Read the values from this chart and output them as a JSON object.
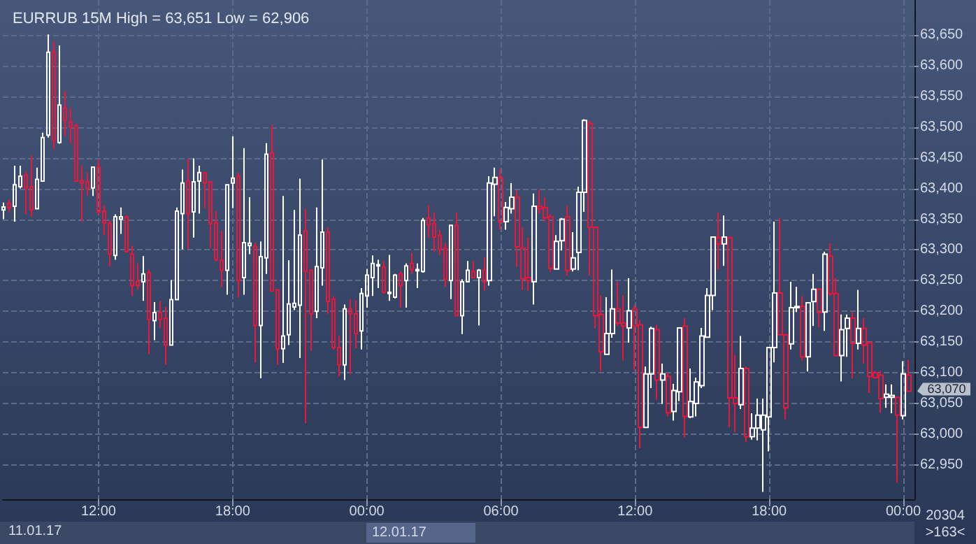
{
  "chart_data": {
    "type": "candlestick",
    "title": "EURRUB 15M High = 63,651 Low = 62,906",
    "x": [
      "--01-11T07:45",
      "--01-11T08:00",
      "--01-11T08:15",
      "--01-11T08:30",
      "--01-11T08:45",
      "--01-11T09:00",
      "--01-11T09:15",
      "--01-11T09:30",
      "--01-11T09:45",
      "--01-11T10:00",
      "--01-11T10:15",
      "--01-11T10:30",
      "--01-11T10:45",
      "--01-11T11:00",
      "--01-11T11:15",
      "--01-11T11:30",
      "--01-11T11:45",
      "--01-11T12:00",
      "--01-11T12:15",
      "--01-11T12:30",
      "--01-11T12:45",
      "--01-11T13:00",
      "--01-11T13:15",
      "--01-11T13:30",
      "--01-11T13:45",
      "--01-11T14:00",
      "--01-11T14:15",
      "--01-11T14:30",
      "--01-11T14:45",
      "--01-11T15:00",
      "--01-11T15:15",
      "--01-11T15:30",
      "--01-11T15:45",
      "--01-11T16:00",
      "--01-11T16:15",
      "--01-11T16:30",
      "--01-11T16:45",
      "--01-11T17:00",
      "--01-11T17:15",
      "--01-11T17:30",
      "--01-11T17:45",
      "--01-11T18:00",
      "--01-11T18:15",
      "--01-11T18:30",
      "--01-11T18:45",
      "--01-11T19:00",
      "--01-11T19:15",
      "--01-11T19:30",
      "--01-11T19:45",
      "--01-11T20:00",
      "--01-11T20:15",
      "--01-11T20:30",
      "--01-11T20:45",
      "--01-11T21:00",
      "--01-11T21:15",
      "--01-11T21:30",
      "--01-11T21:45",
      "--01-11T22:00",
      "--01-11T22:15",
      "--01-11T22:30",
      "--01-11T22:45",
      "--01-11T23:00",
      "--01-11T23:15",
      "--01-11T23:30",
      "--01-11T23:45",
      "--01-12T00:00",
      "--01-12T00:15",
      "--01-12T00:30",
      "--01-12T00:45",
      "--01-12T01:00",
      "--01-12T01:15",
      "--01-12T01:30",
      "--01-12T01:45",
      "--01-12T02:00",
      "--01-12T02:15",
      "--01-12T02:30",
      "--01-12T02:45",
      "--01-12T03:00",
      "--01-12T03:15",
      "--01-12T03:30",
      "--01-12T03:45",
      "--01-12T04:00",
      "--01-12T04:15",
      "--01-12T04:30",
      "--01-12T04:45",
      "--01-12T05:00",
      "--01-12T05:15",
      "--01-12T05:30",
      "--01-12T05:45",
      "--01-12T06:00",
      "--01-12T06:15",
      "--01-12T06:30",
      "--01-12T06:45",
      "--01-12T07:00",
      "--01-12T07:15",
      "--01-12T07:30",
      "--01-12T07:45",
      "--01-12T08:00",
      "--01-12T08:15",
      "--01-12T08:30",
      "--01-12T08:45",
      "--01-12T09:00",
      "--01-12T09:15",
      "--01-12T09:30",
      "--01-12T09:45",
      "--01-12T10:00",
      "--01-12T10:15",
      "--01-12T10:30",
      "--01-12T10:45",
      "--01-12T11:00",
      "--01-12T11:15",
      "--01-12T11:30",
      "--01-12T11:45",
      "--01-12T12:00",
      "--01-12T12:15",
      "--01-12T12:30",
      "--01-12T12:45",
      "--01-12T13:00",
      "--01-12T13:15",
      "--01-12T13:30",
      "--01-12T13:45",
      "--01-12T14:00",
      "--01-12T14:15",
      "--01-12T14:30",
      "--01-12T14:45",
      "--01-12T15:00",
      "--01-12T15:15",
      "--01-12T15:30",
      "--01-12T15:45",
      "--01-12T16:00",
      "--01-12T16:15",
      "--01-12T16:30",
      "--01-12T16:45",
      "--01-12T17:00",
      "--01-12T17:15",
      "--01-12T17:30",
      "--01-12T17:45",
      "--01-12T18:00",
      "--01-12T18:15",
      "--01-12T18:30",
      "--01-12T18:45",
      "--01-12T19:00",
      "--01-12T19:15",
      "--01-12T19:30",
      "--01-12T19:45",
      "--01-12T20:00",
      "--01-12T20:15",
      "--01-12T20:30",
      "--01-12T20:45",
      "--01-12T21:00",
      "--01-12T21:15",
      "--01-12T21:30",
      "--01-12T21:45",
      "--01-12T22:00",
      "--01-12T22:15",
      "--01-12T22:30",
      "--01-12T22:45",
      "--01-12T23:00",
      "--01-12T23:15",
      "--01-12T23:30",
      "--01-12T23:45",
      "--01-13T00:00",
      "--01-13T00:15"
    ],
    "ohlc": [
      [
        63365,
        63377,
        63350,
        63370
      ],
      [
        63376,
        63382,
        63362,
        63369
      ],
      [
        63371,
        63437,
        63346,
        63406
      ],
      [
        63403,
        63437,
        63400,
        63420
      ],
      [
        63422,
        63428,
        63358,
        63401
      ],
      [
        63403,
        63454,
        63354,
        63365
      ],
      [
        63367,
        63434,
        63367,
        63415
      ],
      [
        63412,
        63491,
        63411,
        63483
      ],
      [
        63487,
        63651,
        63483,
        63622
      ],
      [
        63622,
        63639,
        63464,
        63479
      ],
      [
        63475,
        63633,
        63473,
        63536
      ],
      [
        63531,
        63559,
        63485,
        63511
      ],
      [
        63508,
        63531,
        63473,
        63500
      ],
      [
        63502,
        63506,
        63412,
        63412
      ],
      [
        63413,
        63437,
        63346,
        63409
      ],
      [
        63411,
        63426,
        63388,
        63400
      ],
      [
        63401,
        63435,
        63388,
        63435
      ],
      [
        63435,
        63447,
        63358,
        63362
      ],
      [
        63363,
        63373,
        63324,
        63344
      ],
      [
        63343,
        63348,
        63273,
        63293
      ],
      [
        63291,
        63358,
        63284,
        63354
      ],
      [
        63350,
        63369,
        63326,
        63354
      ],
      [
        63354,
        63356,
        63296,
        63297
      ],
      [
        63293,
        63307,
        63225,
        63242
      ],
      [
        63249,
        63278,
        63236,
        63242
      ],
      [
        63248,
        63290,
        63217,
        63261
      ],
      [
        63263,
        63268,
        63130,
        63187
      ],
      [
        63185,
        63215,
        63153,
        63198
      ],
      [
        63198,
        63217,
        63173,
        63187
      ],
      [
        63189,
        63207,
        63113,
        63145
      ],
      [
        63145,
        63251,
        63145,
        63219
      ],
      [
        63219,
        63369,
        63219,
        63363
      ],
      [
        63359,
        63431,
        63301,
        63409
      ],
      [
        63412,
        63449,
        63302,
        63359
      ],
      [
        63362,
        63449,
        63320,
        63411
      ],
      [
        63412,
        63437,
        63359,
        63426
      ],
      [
        63426,
        63426,
        63368,
        63409
      ],
      [
        63411,
        63411,
        63303,
        63343
      ],
      [
        63344,
        63363,
        63282,
        63284
      ],
      [
        63283,
        63331,
        63240,
        63267
      ],
      [
        63267,
        63406,
        63227,
        63406
      ],
      [
        63409,
        63485,
        63368,
        63417
      ],
      [
        63420,
        63426,
        63223,
        63250
      ],
      [
        63255,
        63466,
        63227,
        63312
      ],
      [
        63307,
        63386,
        63293,
        63311
      ],
      [
        63306,
        63312,
        63117,
        63177
      ],
      [
        63177,
        63314,
        63091,
        63289
      ],
      [
        63287,
        63474,
        63261,
        63456
      ],
      [
        63458,
        63504,
        63233,
        63233
      ],
      [
        63235,
        63235,
        63113,
        63139
      ],
      [
        63139,
        63388,
        63116,
        63160
      ],
      [
        63162,
        63283,
        63145,
        63212
      ],
      [
        63207,
        63365,
        63202,
        63213
      ],
      [
        63210,
        63416,
        63124,
        63324
      ],
      [
        63331,
        63367,
        63018,
        63265
      ],
      [
        63267,
        63267,
        63136,
        63196
      ],
      [
        63200,
        63369,
        63189,
        63273
      ],
      [
        63271,
        63447,
        63242,
        63329
      ],
      [
        63329,
        63337,
        63196,
        63216
      ],
      [
        63220,
        63225,
        63138,
        63141
      ],
      [
        63141,
        63160,
        63094,
        63113
      ],
      [
        63113,
        63211,
        63088,
        63204
      ],
      [
        63204,
        63220,
        63098,
        63196
      ],
      [
        63196,
        63218,
        63140,
        63164
      ],
      [
        63168,
        63238,
        63138,
        63229
      ],
      [
        63225,
        63269,
        63206,
        63259
      ],
      [
        63255,
        63291,
        63225,
        63278
      ],
      [
        63274,
        63284,
        63238,
        63276
      ],
      [
        63272,
        63282,
        63229,
        63231
      ],
      [
        63229,
        63292,
        63217,
        63231
      ],
      [
        63223,
        63261,
        63221,
        63259
      ],
      [
        63261,
        63265,
        63206,
        63242
      ],
      [
        63250,
        63278,
        63206,
        63274
      ],
      [
        63278,
        63295,
        63261,
        63268
      ],
      [
        63266,
        63278,
        63238,
        63268
      ],
      [
        63265,
        63352,
        63263,
        63348
      ],
      [
        63352,
        63373,
        63320,
        63341
      ],
      [
        63343,
        63361,
        63297,
        63321
      ],
      [
        63324,
        63333,
        63291,
        63301
      ],
      [
        63303,
        63312,
        63240,
        63252
      ],
      [
        63250,
        63340,
        63220,
        63340
      ],
      [
        63340,
        63361,
        63193,
        63193
      ],
      [
        63193,
        63252,
        63163,
        63248
      ],
      [
        63248,
        63282,
        63248,
        63267
      ],
      [
        63265,
        63282,
        63255,
        63255
      ],
      [
        63255,
        63269,
        63177,
        63267
      ],
      [
        63267,
        63288,
        63234,
        63248
      ],
      [
        63250,
        63420,
        63242,
        63409
      ],
      [
        63407,
        63434,
        63355,
        63418
      ],
      [
        63417,
        63432,
        63333,
        63346
      ],
      [
        63346,
        63378,
        63333,
        63369
      ],
      [
        63367,
        63409,
        63359,
        63386
      ],
      [
        63386,
        63397,
        63273,
        63305
      ],
      [
        63303,
        63337,
        63235,
        63253
      ],
      [
        63255,
        63320,
        63233,
        63250
      ],
      [
        63248,
        63392,
        63211,
        63371
      ],
      [
        63371,
        63398,
        63359,
        63367
      ],
      [
        63369,
        63386,
        63346,
        63352
      ],
      [
        63354,
        63358,
        63264,
        63270
      ],
      [
        63269,
        63324,
        63269,
        63314
      ],
      [
        63315,
        63352,
        63299,
        63350
      ],
      [
        63354,
        63372,
        63258,
        63267
      ],
      [
        63269,
        63329,
        63265,
        63287
      ],
      [
        63296,
        63403,
        63267,
        63394
      ],
      [
        63394,
        63513,
        63362,
        63511
      ],
      [
        63506,
        63511,
        63258,
        63337
      ],
      [
        63337,
        63337,
        63172,
        63193
      ],
      [
        63195,
        63226,
        63102,
        63134
      ],
      [
        63130,
        63223,
        63130,
        63164
      ],
      [
        63164,
        63268,
        63157,
        63204
      ],
      [
        63204,
        63248,
        63176,
        63181
      ],
      [
        63181,
        63226,
        63120,
        63176
      ],
      [
        63173,
        63254,
        63149,
        63201
      ],
      [
        63204,
        63210,
        63104,
        63176
      ],
      [
        63178,
        63186,
        62977,
        63011
      ],
      [
        63011,
        63110,
        63011,
        63098
      ],
      [
        63098,
        63175,
        63075,
        63172
      ],
      [
        63170,
        63178,
        63056,
        63088
      ],
      [
        63088,
        63115,
        63049,
        63098
      ],
      [
        63094,
        63100,
        63029,
        63035
      ],
      [
        63037,
        63082,
        63022,
        63071
      ],
      [
        63069,
        63173,
        63054,
        63173
      ],
      [
        63176,
        63189,
        62995,
        63029
      ],
      [
        63028,
        63107,
        63026,
        63053
      ],
      [
        63050,
        63092,
        63029,
        63085
      ],
      [
        63079,
        63173,
        63075,
        63160
      ],
      [
        63158,
        63238,
        63157,
        63226
      ],
      [
        63226,
        63321,
        63202,
        63321
      ],
      [
        63320,
        63361,
        63268,
        63310
      ],
      [
        63310,
        63356,
        63274,
        63321
      ],
      [
        63320,
        63320,
        63011,
        63059
      ],
      [
        63059,
        63129,
        63003,
        63050
      ],
      [
        63048,
        63160,
        63041,
        63107
      ],
      [
        63107,
        63110,
        62987,
        62996
      ],
      [
        62996,
        63034,
        62991,
        63010
      ],
      [
        63010,
        63058,
        62990,
        63031
      ],
      [
        63007,
        63058,
        62906,
        63031
      ],
      [
        63028,
        63142,
        62972,
        63141
      ],
      [
        63141,
        63346,
        63117,
        63230
      ],
      [
        63230,
        63352,
        63162,
        63162
      ],
      [
        63162,
        63162,
        63024,
        63043
      ],
      [
        63147,
        63248,
        63138,
        63206
      ],
      [
        63206,
        63240,
        63199,
        63208
      ],
      [
        63208,
        63225,
        63120,
        63126
      ],
      [
        63126,
        63214,
        63102,
        63214
      ],
      [
        63216,
        63261,
        63176,
        63236
      ],
      [
        63236,
        63238,
        63174,
        63198
      ],
      [
        63199,
        63297,
        63168,
        63293
      ],
      [
        63290,
        63311,
        63225,
        63229
      ],
      [
        63229,
        63254,
        63127,
        63128
      ],
      [
        63128,
        63195,
        63086,
        63170
      ],
      [
        63172,
        63195,
        63126,
        63189
      ],
      [
        63189,
        63199,
        63091,
        63148
      ],
      [
        63148,
        63235,
        63138,
        63172
      ],
      [
        63172,
        63189,
        63115,
        63145
      ],
      [
        63149,
        63149,
        63067,
        63094
      ],
      [
        63100,
        63103,
        63090,
        63092
      ],
      [
        63096,
        63103,
        63035,
        63058
      ],
      [
        63060,
        63081,
        63043,
        63065
      ],
      [
        63060,
        63081,
        63034,
        63063
      ],
      [
        63060,
        63060,
        62921,
        63031
      ],
      [
        63030,
        63119,
        63024,
        63098
      ],
      [
        63096,
        63121,
        63069,
        63070
      ]
    ],
    "colors": [
      "#ffffff",
      "#e8173c",
      "#ffffff",
      "#ffffff",
      "#e8173c",
      "#e8173c",
      "#ffffff",
      "#ffffff",
      "#ffffff",
      "#e8173c",
      "#ffffff",
      "#e8173c",
      "#e8173c",
      "#e8173c",
      "#e8173c",
      "#e8173c",
      "#ffffff",
      "#e8173c",
      "#e8173c",
      "#e8173c",
      "#ffffff",
      "#ffffff",
      "#e8173c",
      "#e8173c",
      "#e8173c",
      "#ffffff",
      "#e8173c",
      "#ffffff",
      "#e8173c",
      "#e8173c",
      "#ffffff",
      "#ffffff",
      "#ffffff",
      "#e8173c",
      "#ffffff",
      "#ffffff",
      "#e8173c",
      "#e8173c",
      "#e8173c",
      "#e8173c",
      "#ffffff",
      "#ffffff",
      "#e8173c",
      "#ffffff",
      "#ffffff",
      "#e8173c",
      "#ffffff",
      "#ffffff",
      "#e8173c",
      "#e8173c",
      "#ffffff",
      "#ffffff",
      "#ffffff",
      "#ffffff",
      "#e8173c",
      "#e8173c",
      "#ffffff",
      "#ffffff",
      "#e8173c",
      "#e8173c",
      "#e8173c",
      "#ffffff",
      "#e8173c",
      "#e8173c",
      "#ffffff",
      "#ffffff",
      "#ffffff",
      "#ffffff",
      "#e8173c",
      "#ffffff",
      "#ffffff",
      "#e8173c",
      "#ffffff",
      "#e8173c",
      "#ffffff",
      "#ffffff",
      "#e8173c",
      "#e8173c",
      "#e8173c",
      "#e8173c",
      "#ffffff",
      "#e8173c",
      "#ffffff",
      "#ffffff",
      "#e8173c",
      "#ffffff",
      "#e8173c",
      "#ffffff",
      "#ffffff",
      "#e8173c",
      "#ffffff",
      "#ffffff",
      "#e8173c",
      "#e8173c",
      "#e8173c",
      "#ffffff",
      "#e8173c",
      "#e8173c",
      "#e8173c",
      "#ffffff",
      "#ffffff",
      "#e8173c",
      "#ffffff",
      "#ffffff",
      "#ffffff",
      "#e8173c",
      "#e8173c",
      "#e8173c",
      "#ffffff",
      "#ffffff",
      "#e8173c",
      "#e8173c",
      "#ffffff",
      "#e8173c",
      "#e8173c",
      "#ffffff",
      "#ffffff",
      "#e8173c",
      "#ffffff",
      "#e8173c",
      "#ffffff",
      "#ffffff",
      "#e8173c",
      "#ffffff",
      "#ffffff",
      "#ffffff",
      "#ffffff",
      "#ffffff",
      "#e8173c",
      "#ffffff",
      "#e8173c",
      "#e8173c",
      "#ffffff",
      "#e8173c",
      "#ffffff",
      "#ffffff",
      "#ffffff",
      "#ffffff",
      "#ffffff",
      "#e8173c",
      "#e8173c",
      "#ffffff",
      "#ffffff",
      "#e8173c",
      "#ffffff",
      "#ffffff",
      "#e8173c",
      "#ffffff",
      "#e8173c",
      "#e8173c",
      "#ffffff",
      "#ffffff",
      "#e8173c",
      "#ffffff",
      "#e8173c",
      "#e8173c",
      "#e8173c",
      "#e8173c",
      "#ffffff",
      "#ffffff",
      "#e8173c",
      "#ffffff",
      "#e8173c"
    ],
    "xlim": [
      "--01-11T07:43",
      "--01-13T00:30"
    ],
    "xticks": [
      {
        "value": "--01-11T12:00",
        "label": "12:00"
      },
      {
        "value": "--01-11T18:00",
        "label": "18:00"
      },
      {
        "value": "--01-12T00:00",
        "label": "00:00"
      },
      {
        "value": "--01-12T06:00",
        "label": "06:00"
      },
      {
        "value": "--01-12T12:00",
        "label": "12:00"
      },
      {
        "value": "--01-12T18:00",
        "label": "18:00"
      },
      {
        "value": "--01-13T00:00",
        "label": "00:00"
      }
    ],
    "ylim": [
      62894,
      63707
    ],
    "yticks": [
      {
        "value": 62950,
        "label": "62,950"
      },
      {
        "value": 63000,
        "label": "63,000"
      },
      {
        "value": 63050,
        "label": "63,050"
      },
      {
        "value": 63100,
        "label": "63,100"
      },
      {
        "value": 63150,
        "label": "63,150"
      },
      {
        "value": 63200,
        "label": "63,200"
      },
      {
        "value": 63250,
        "label": "63,250"
      },
      {
        "value": 63300,
        "label": "63,300"
      },
      {
        "value": 63350,
        "label": "63,350"
      },
      {
        "value": 63400,
        "label": "63,400"
      },
      {
        "value": 63450,
        "label": "63,450"
      },
      {
        "value": 63500,
        "label": "63,500"
      },
      {
        "value": 63550,
        "label": "63,550"
      },
      {
        "value": 63600,
        "label": "63,600"
      },
      {
        "value": 63650,
        "label": "63,650"
      }
    ],
    "grid": true,
    "annotations": [
      "11.01.17",
      "12.01.17",
      "63,070",
      "20304",
      ">163<"
    ]
  }
}
